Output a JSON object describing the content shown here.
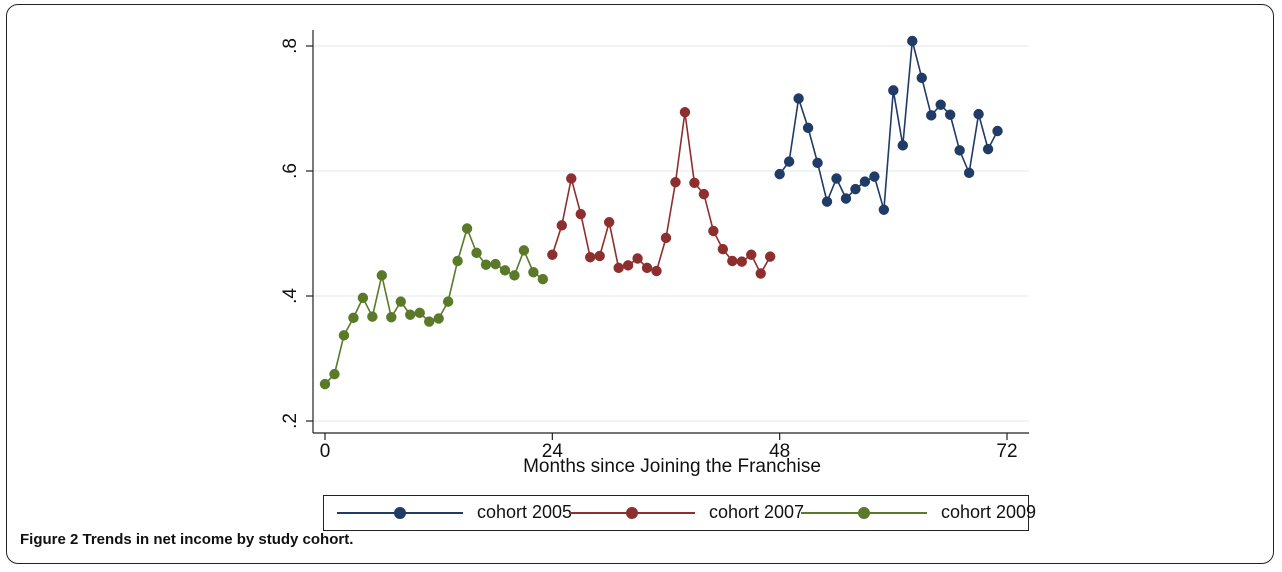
{
  "caption": "Figure 2 Trends in net income by study cohort.",
  "chart_data": {
    "type": "line",
    "xlabel": "Months since Joining the Franchise",
    "ylabel": "",
    "xlim": [
      0,
      72
    ],
    "ylim": [
      0.2,
      0.8
    ],
    "xticks": [
      0,
      24,
      48,
      72
    ],
    "xtick_labels": [
      "0",
      "24",
      "48",
      "72"
    ],
    "yticks": [
      0.2,
      0.4,
      0.6,
      0.8
    ],
    "ytick_labels": [
      ".2",
      ".4",
      ".6",
      ".8"
    ],
    "grid": "horizontal",
    "legend_position": "bottom",
    "series": [
      {
        "name": "cohort 2005",
        "color": "#1f3b66",
        "x": [
          48,
          49,
          50,
          51,
          52,
          53,
          54,
          55,
          56,
          57,
          58,
          59,
          60,
          61,
          62,
          63,
          64,
          65,
          66,
          67,
          68,
          69,
          70,
          71
        ],
        "y": [
          0.595,
          0.615,
          0.716,
          0.669,
          0.613,
          0.551,
          0.588,
          0.556,
          0.571,
          0.583,
          0.591,
          0.538,
          0.729,
          0.641,
          0.808,
          0.749,
          0.689,
          0.706,
          0.69,
          0.633,
          0.597,
          0.691,
          0.635,
          0.664
        ]
      },
      {
        "name": "cohort 2007",
        "color": "#8e2f2f",
        "x": [
          24,
          25,
          26,
          27,
          28,
          29,
          30,
          31,
          32,
          33,
          34,
          35,
          36,
          37,
          38,
          39,
          40,
          41,
          42,
          43,
          44,
          45,
          46,
          47
        ],
        "y": [
          0.466,
          0.513,
          0.588,
          0.531,
          0.462,
          0.464,
          0.518,
          0.445,
          0.449,
          0.46,
          0.445,
          0.44,
          0.493,
          0.582,
          0.694,
          0.581,
          0.563,
          0.504,
          0.475,
          0.456,
          0.455,
          0.466,
          0.436,
          0.463
        ]
      },
      {
        "name": "cohort 2009",
        "color": "#5a7a2a",
        "x": [
          0,
          1,
          2,
          3,
          4,
          5,
          6,
          7,
          8,
          9,
          10,
          11,
          12,
          13,
          14,
          15,
          16,
          17,
          18,
          19,
          20,
          21,
          22,
          23
        ],
        "y": [
          0.259,
          0.275,
          0.337,
          0.365,
          0.397,
          0.367,
          0.433,
          0.366,
          0.391,
          0.37,
          0.373,
          0.359,
          0.364,
          0.391,
          0.456,
          0.508,
          0.469,
          0.45,
          0.451,
          0.441,
          0.433,
          0.473,
          0.438,
          0.427
        ]
      }
    ]
  }
}
